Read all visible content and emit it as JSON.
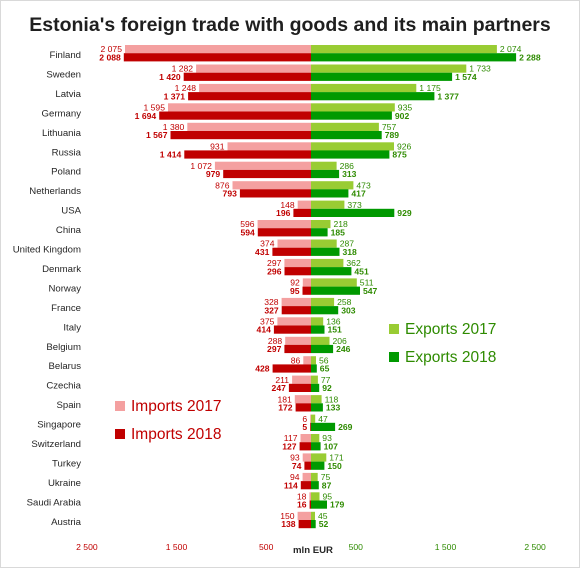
{
  "colors": {
    "imports_2017": "#f4a0a0",
    "imports_2018": "#c00000",
    "exports_2017": "#99cc33",
    "exports_2018": "#009900",
    "imports_text": "#c00000",
    "exports_text": "#2e8b00"
  },
  "chart_data": {
    "type": "bar",
    "orientation": "horizontal-diverging",
    "title": "Estonia's foreign trade with goods and its main partners",
    "xlabel": "mln EUR",
    "ylabel": "",
    "xlim": [
      -2500,
      2500
    ],
    "x_ticks": [
      "2 500",
      "1 500",
      "500",
      "500",
      "1 500",
      "2 500"
    ],
    "categories": [
      "Finland",
      "Sweden",
      "Latvia",
      "Germany",
      "Lithuania",
      "Russia",
      "Poland",
      "Netherlands",
      "USA",
      "China",
      "United Kingdom",
      "Denmark",
      "Norway",
      "France",
      "Italy",
      "Belgium",
      "Belarus",
      "Czechia",
      "Spain",
      "Singapore",
      "Switzerland",
      "Turkey",
      "Ukraine",
      "Saudi Arabia",
      "Austria"
    ],
    "series": [
      {
        "name": "Imports 2017",
        "labels": [
          "2 075",
          "1 282",
          "1 248",
          "1 595",
          "1 380",
          "931",
          "1 072",
          "876",
          "148",
          "596",
          "374",
          "297",
          "92",
          "328",
          "375",
          "288",
          "86",
          "211",
          "181",
          "6",
          "117",
          "93",
          "94",
          "18",
          "150"
        ],
        "values": [
          2075,
          1282,
          1248,
          1595,
          1380,
          931,
          1072,
          876,
          148,
          596,
          374,
          297,
          92,
          328,
          375,
          288,
          86,
          211,
          181,
          6,
          117,
          93,
          94,
          18,
          150
        ]
      },
      {
        "name": "Imports 2018",
        "labels": [
          "2 088",
          "1 420",
          "1 371",
          "1 694",
          "1 567",
          "1 414",
          "979",
          "793",
          "196",
          "594",
          "431",
          "296",
          "95",
          "327",
          "414",
          "297",
          "428",
          "247",
          "172",
          "5",
          "127",
          "74",
          "114",
          "16",
          "138"
        ],
        "values": [
          2088,
          1420,
          1371,
          1694,
          1567,
          1414,
          979,
          793,
          196,
          594,
          431,
          296,
          95,
          327,
          414,
          297,
          428,
          247,
          172,
          5,
          127,
          74,
          114,
          16,
          138
        ]
      },
      {
        "name": "Exports 2017",
        "labels": [
          "2 074",
          "1 733",
          "1 175",
          "935",
          "757",
          "926",
          "286",
          "473",
          "373",
          "218",
          "287",
          "362",
          "511",
          "258",
          "136",
          "206",
          "56",
          "77",
          "118",
          "47",
          "93",
          "171",
          "75",
          "95",
          "45"
        ],
        "values": [
          2074,
          1733,
          1175,
          935,
          757,
          926,
          286,
          473,
          373,
          218,
          287,
          362,
          511,
          258,
          136,
          206,
          56,
          77,
          118,
          47,
          93,
          171,
          75,
          95,
          45
        ]
      },
      {
        "name": "Exports 2018",
        "labels": [
          "2 288",
          "1 574",
          "1 377",
          "902",
          "789",
          "875",
          "313",
          "417",
          "929",
          "185",
          "318",
          "451",
          "547",
          "303",
          "151",
          "246",
          "65",
          "92",
          "133",
          "269",
          "107",
          "150",
          "87",
          "179",
          "52"
        ],
        "values": [
          2288,
          1574,
          1377,
          902,
          789,
          875,
          313,
          417,
          929,
          185,
          318,
          451,
          547,
          303,
          151,
          246,
          65,
          92,
          133,
          269,
          107,
          150,
          87,
          179,
          52
        ]
      }
    ],
    "legend": [
      {
        "label": "Imports 2017",
        "position": "lower-left"
      },
      {
        "label": "Imports 2018",
        "position": "lower-left"
      },
      {
        "label": "Exports 2017",
        "position": "center-right"
      },
      {
        "label": "Exports 2018",
        "position": "center-right"
      }
    ],
    "grid": false
  }
}
